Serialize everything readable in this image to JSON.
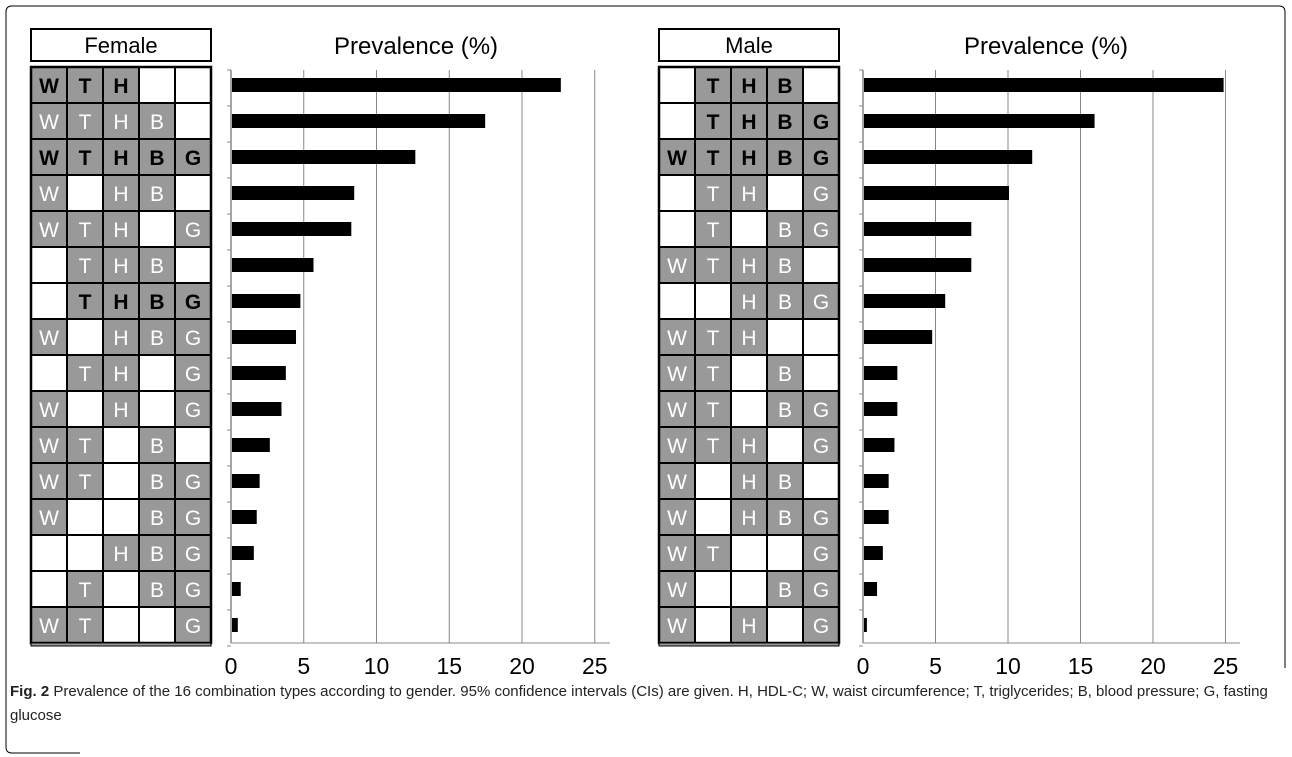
{
  "figure_label": "Fig. 2",
  "caption_text": "Prevalence of the 16 combination types according to gender. 95% confidence intervals (CIs) are given. H, HDL-C; W, waist circumference; T, triglycerides; B, blood pressure; G, fasting glucose",
  "colors": {
    "bar": "#000000",
    "shaded_cell": "#999999",
    "grid": "#888888",
    "border": "#000000"
  },
  "chart_data": [
    {
      "type": "bar",
      "orientation": "horizontal",
      "group_label": "Female",
      "title": "Prevalence (%)",
      "xlim": [
        0,
        25
      ],
      "x_ticks": [
        "0",
        "5",
        "10",
        "15",
        "20",
        "25"
      ],
      "grid": true,
      "components": [
        "W",
        "T",
        "H",
        "B",
        "G"
      ],
      "rows": [
        {
          "pattern": [
            1,
            1,
            1,
            0,
            0
          ],
          "bold": true,
          "value": 22.6
        },
        {
          "pattern": [
            1,
            1,
            1,
            1,
            0
          ],
          "bold": false,
          "value": 17.4
        },
        {
          "pattern": [
            1,
            1,
            1,
            1,
            1
          ],
          "bold": true,
          "value": 12.6
        },
        {
          "pattern": [
            1,
            0,
            1,
            1,
            0
          ],
          "bold": false,
          "value": 8.4
        },
        {
          "pattern": [
            1,
            1,
            1,
            0,
            1
          ],
          "bold": false,
          "value": 8.2
        },
        {
          "pattern": [
            0,
            1,
            1,
            1,
            0
          ],
          "bold": false,
          "value": 5.6
        },
        {
          "pattern": [
            0,
            1,
            1,
            1,
            1
          ],
          "bold": true,
          "value": 4.7
        },
        {
          "pattern": [
            1,
            0,
            1,
            1,
            1
          ],
          "bold": false,
          "value": 4.4
        },
        {
          "pattern": [
            0,
            1,
            1,
            0,
            1
          ],
          "bold": false,
          "value": 3.7
        },
        {
          "pattern": [
            1,
            0,
            1,
            0,
            1
          ],
          "bold": false,
          "value": 3.4
        },
        {
          "pattern": [
            1,
            1,
            0,
            1,
            0
          ],
          "bold": false,
          "value": 2.6
        },
        {
          "pattern": [
            1,
            1,
            0,
            1,
            1
          ],
          "bold": false,
          "value": 1.9
        },
        {
          "pattern": [
            1,
            0,
            0,
            1,
            1
          ],
          "bold": false,
          "value": 1.7
        },
        {
          "pattern": [
            0,
            0,
            1,
            1,
            1
          ],
          "bold": false,
          "value": 1.5
        },
        {
          "pattern": [
            0,
            1,
            0,
            1,
            1
          ],
          "bold": false,
          "value": 0.6
        },
        {
          "pattern": [
            1,
            1,
            0,
            0,
            1
          ],
          "bold": false,
          "value": 0.4
        }
      ]
    },
    {
      "type": "bar",
      "orientation": "horizontal",
      "group_label": "Male",
      "title": "Prevalence (%)",
      "xlim": [
        0,
        25
      ],
      "x_ticks": [
        "0",
        "5",
        "10",
        "15",
        "20",
        "25"
      ],
      "grid": true,
      "components": [
        "W",
        "T",
        "H",
        "B",
        "G"
      ],
      "rows": [
        {
          "pattern": [
            0,
            1,
            1,
            1,
            0
          ],
          "bold": true,
          "value": 24.8
        },
        {
          "pattern": [
            0,
            1,
            1,
            1,
            1
          ],
          "bold": true,
          "value": 15.9
        },
        {
          "pattern": [
            1,
            1,
            1,
            1,
            1
          ],
          "bold": true,
          "value": 11.6
        },
        {
          "pattern": [
            0,
            1,
            1,
            0,
            1
          ],
          "bold": false,
          "value": 10.0
        },
        {
          "pattern": [
            0,
            1,
            0,
            1,
            1
          ],
          "bold": false,
          "value": 7.4
        },
        {
          "pattern": [
            1,
            1,
            1,
            1,
            0
          ],
          "bold": false,
          "value": 7.4
        },
        {
          "pattern": [
            0,
            0,
            1,
            1,
            1
          ],
          "bold": false,
          "value": 5.6
        },
        {
          "pattern": [
            1,
            1,
            1,
            0,
            0
          ],
          "bold": false,
          "value": 4.7
        },
        {
          "pattern": [
            1,
            1,
            0,
            1,
            0
          ],
          "bold": false,
          "value": 2.3
        },
        {
          "pattern": [
            1,
            1,
            0,
            1,
            1
          ],
          "bold": false,
          "value": 2.3
        },
        {
          "pattern": [
            1,
            1,
            1,
            0,
            1
          ],
          "bold": false,
          "value": 2.1
        },
        {
          "pattern": [
            1,
            0,
            1,
            1,
            0
          ],
          "bold": false,
          "value": 1.7
        },
        {
          "pattern": [
            1,
            0,
            1,
            1,
            1
          ],
          "bold": false,
          "value": 1.7
        },
        {
          "pattern": [
            1,
            1,
            0,
            0,
            1
          ],
          "bold": false,
          "value": 1.3
        },
        {
          "pattern": [
            1,
            0,
            0,
            1,
            1
          ],
          "bold": false,
          "value": 0.9
        },
        {
          "pattern": [
            1,
            0,
            1,
            0,
            1
          ],
          "bold": false,
          "value": 0.2
        }
      ]
    }
  ]
}
